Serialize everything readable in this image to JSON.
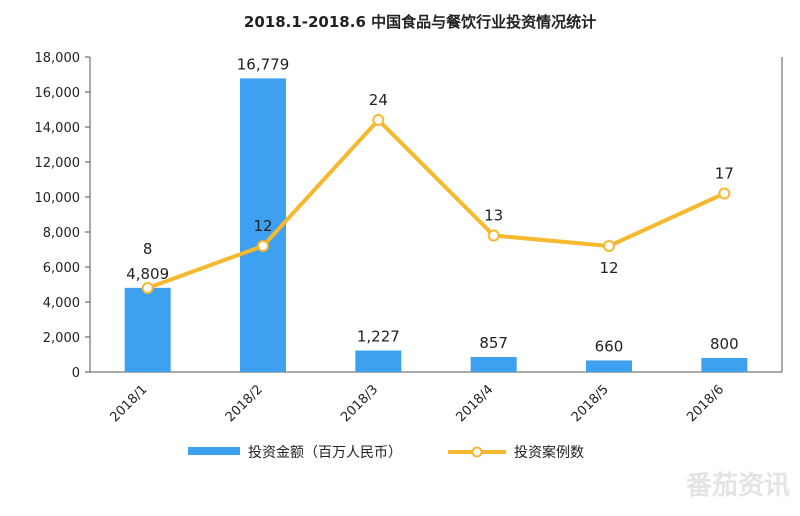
{
  "watermark": "番茄资讯",
  "chart_data": {
    "type": "bar+line",
    "title": "2018.1-2018.6 中国食品与餐饮行业投资情况统计",
    "categories": [
      "2018/1",
      "2018/2",
      "2018/3",
      "2018/4",
      "2018/5",
      "2018/6"
    ],
    "series": [
      {
        "name": "投资金额（百万人民币）",
        "type": "bar",
        "axis": "left",
        "color": "#3ea0f0",
        "values": [
          4809,
          16779,
          1227,
          857,
          660,
          800
        ],
        "labels": [
          "4,809",
          "16,779",
          "1,227",
          "857",
          "660",
          "800"
        ]
      },
      {
        "name": "投资案例数",
        "type": "line",
        "axis": "right",
        "color": "#f5b82e",
        "values": [
          8,
          12,
          24,
          13,
          12,
          17
        ],
        "labels": [
          "8",
          "12",
          "24",
          "13",
          "12",
          "17"
        ]
      }
    ],
    "y_left": {
      "ylim": [
        0,
        18000
      ],
      "ticks": [
        "0",
        "2,000",
        "4,000",
        "6,000",
        "8,000",
        "10,000",
        "12,000",
        "14,000",
        "16,000",
        "18,000"
      ]
    },
    "y_right": {
      "ylim": [
        0,
        30
      ]
    },
    "grid": false,
    "legend_position": "bottom"
  }
}
